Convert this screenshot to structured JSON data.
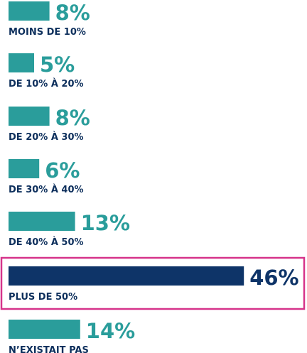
{
  "colors": {
    "bar": "#2a9d9b",
    "highlight_bar": "#0e3468",
    "label": "#0d2f5c",
    "highlight_frame": "#d6338a"
  },
  "chart_data": {
    "type": "bar",
    "orientation": "horizontal",
    "title": "",
    "xlabel": "",
    "ylabel": "",
    "unit": "%",
    "grid": false,
    "categories": [
      "MOINS DE 10%",
      "DE 10% À 20%",
      "DE 20% À 30%",
      "DE 30% À 40%",
      "DE 40% À 50%",
      "PLUS DE 50%",
      "N’EXISTAIT PAS"
    ],
    "values": [
      8,
      5,
      8,
      6,
      13,
      46,
      14
    ],
    "value_labels": [
      "8%",
      "5%",
      "8%",
      "6%",
      "13%",
      "46%",
      "14%"
    ],
    "highlighted_category": "PLUS DE 50%",
    "xlim": [
      0,
      46
    ]
  }
}
